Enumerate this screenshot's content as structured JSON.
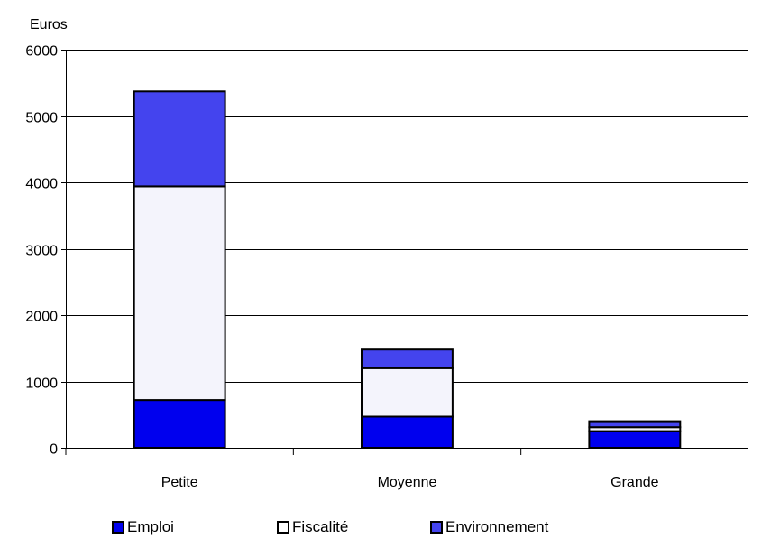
{
  "chart_data": {
    "type": "bar",
    "stacked": true,
    "ylabel": "Euros",
    "xlabel": "",
    "ylim": [
      0,
      6000
    ],
    "yticks": [
      0,
      1000,
      2000,
      3000,
      4000,
      5000,
      6000
    ],
    "grid": true,
    "legend_position": "bottom",
    "categories": [
      "Petite",
      "Moyenne",
      "Grande"
    ],
    "series": [
      {
        "name": "Emploi",
        "color": "#0000ee",
        "values": [
          720,
          470,
          250
        ]
      },
      {
        "name": "Fiscalité",
        "color": "#f4f4fc",
        "values": [
          3220,
          730,
          60
        ]
      },
      {
        "name": "Environnement",
        "color": "#4444ee",
        "values": [
          1430,
          280,
          90
        ]
      }
    ]
  }
}
